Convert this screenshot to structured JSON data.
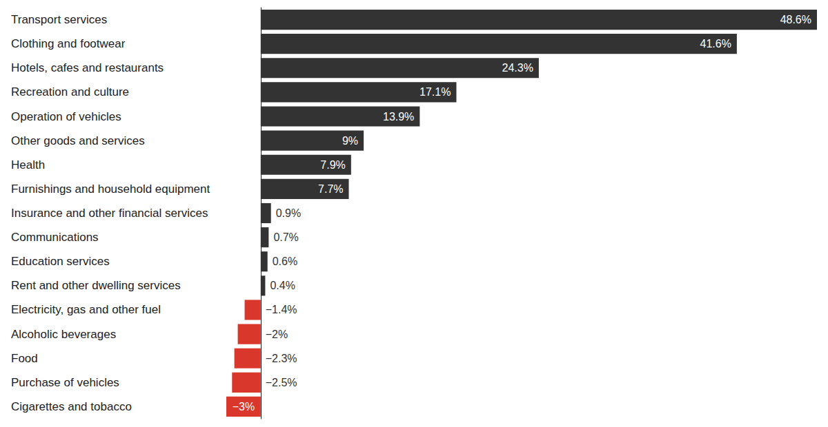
{
  "chart_data": {
    "type": "bar",
    "orientation": "horizontal",
    "categories": [
      "Transport services",
      "Clothing and footwear",
      "Hotels, cafes and restaurants",
      "Recreation and culture",
      "Operation of vehicles",
      "Other goods and services",
      "Health",
      "Furnishings and household equipment",
      "Insurance and other financial services",
      "Communications",
      "Education services",
      "Rent and other dwelling services",
      "Electricity, gas and other fuel",
      "Alcoholic beverages",
      "Food",
      "Purchase of vehicles",
      "Cigarettes and tobacco"
    ],
    "values": [
      48.6,
      41.6,
      24.3,
      17.1,
      13.9,
      9,
      7.9,
      7.7,
      0.9,
      0.7,
      0.6,
      0.4,
      -1.4,
      -2,
      -2.3,
      -2.5,
      -3
    ],
    "value_labels": [
      "48.6%",
      "41.6%",
      "24.3%",
      "17.1%",
      "13.9%",
      "9%",
      "7.9%",
      "7.7%",
      "0.9%",
      "0.7%",
      "0.6%",
      "0.4%",
      "−1.4%",
      "−2%",
      "−2.3%",
      "−2.5%",
      "−3%"
    ],
    "colors": [
      "#333333",
      "#333333",
      "#333333",
      "#333333",
      "#333333",
      "#333333",
      "#333333",
      "#333333",
      "#333333",
      "#333333",
      "#333333",
      "#333333",
      "#d9372b",
      "#d9372b",
      "#d9372b",
      "#d9372b",
      "#d9372b"
    ],
    "xlim": [
      -3,
      48.6
    ],
    "data_labels": true,
    "tick_labels": false,
    "grid": false
  }
}
